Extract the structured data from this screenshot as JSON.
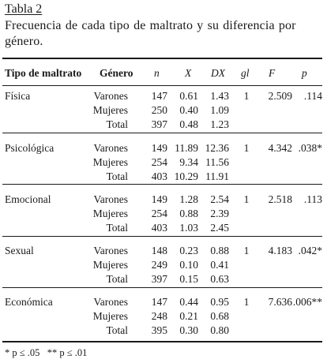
{
  "table": {
    "label": "Tabla 2",
    "caption": "Frecuencia de cada tipo de maltrato y su diferencia por género.",
    "headers": [
      "Tipo de maltrato",
      "Género",
      "n",
      "X",
      "DX",
      "gl",
      "F",
      "p"
    ],
    "groups": [
      {
        "type": "Física",
        "gl": "1",
        "F": "2.509",
        "p": ".114",
        "rows": [
          {
            "gender": "Varones",
            "n": "147",
            "X": "0.61",
            "DX": "1.43"
          },
          {
            "gender": "Mujeres",
            "n": "250",
            "X": "0.40",
            "DX": "1.09"
          },
          {
            "gender": "Total",
            "n": "397",
            "X": "0.48",
            "DX": "1.23"
          }
        ]
      },
      {
        "type": "Psicológica",
        "gl": "1",
        "F": "4.342",
        "p": ".038*",
        "rows": [
          {
            "gender": "Varones",
            "n": "149",
            "X": "11.89",
            "DX": "12.36"
          },
          {
            "gender": "Mujeres",
            "n": "254",
            "X": "9.34",
            "DX": "11.56"
          },
          {
            "gender": "Total",
            "n": "403",
            "X": "10.29",
            "DX": "11.91"
          }
        ]
      },
      {
        "type": "Emocional",
        "gl": "1",
        "F": "2.518",
        "p": ".113",
        "rows": [
          {
            "gender": "Varones",
            "n": "149",
            "X": "1.28",
            "DX": "2.54"
          },
          {
            "gender": "Mujeres",
            "n": "254",
            "X": "0.88",
            "DX": "2.39"
          },
          {
            "gender": "Total",
            "n": "403",
            "X": "1.03",
            "DX": "2.45"
          }
        ]
      },
      {
        "type": "Sexual",
        "gl": "1",
        "F": "4.183",
        "p": ".042*",
        "rows": [
          {
            "gender": "Varones",
            "n": "148",
            "X": "0.23",
            "DX": "0.88"
          },
          {
            "gender": "Mujeres",
            "n": "249",
            "X": "0.10",
            "DX": "0.41"
          },
          {
            "gender": "Total",
            "n": "397",
            "X": "0.15",
            "DX": "0.63"
          }
        ]
      },
      {
        "type": "Económica",
        "gl": "1",
        "F": "7.636",
        "p": ".006**",
        "rows": [
          {
            "gender": "Varones",
            "n": "147",
            "X": "0.44",
            "DX": "0.95"
          },
          {
            "gender": "Mujeres",
            "n": "248",
            "X": "0.21",
            "DX": "0.68"
          },
          {
            "gender": "Total",
            "n": "395",
            "X": "0.30",
            "DX": "0.80"
          }
        ]
      }
    ],
    "footnote": "* p ≤ .05   ** p ≤ .01"
  }
}
